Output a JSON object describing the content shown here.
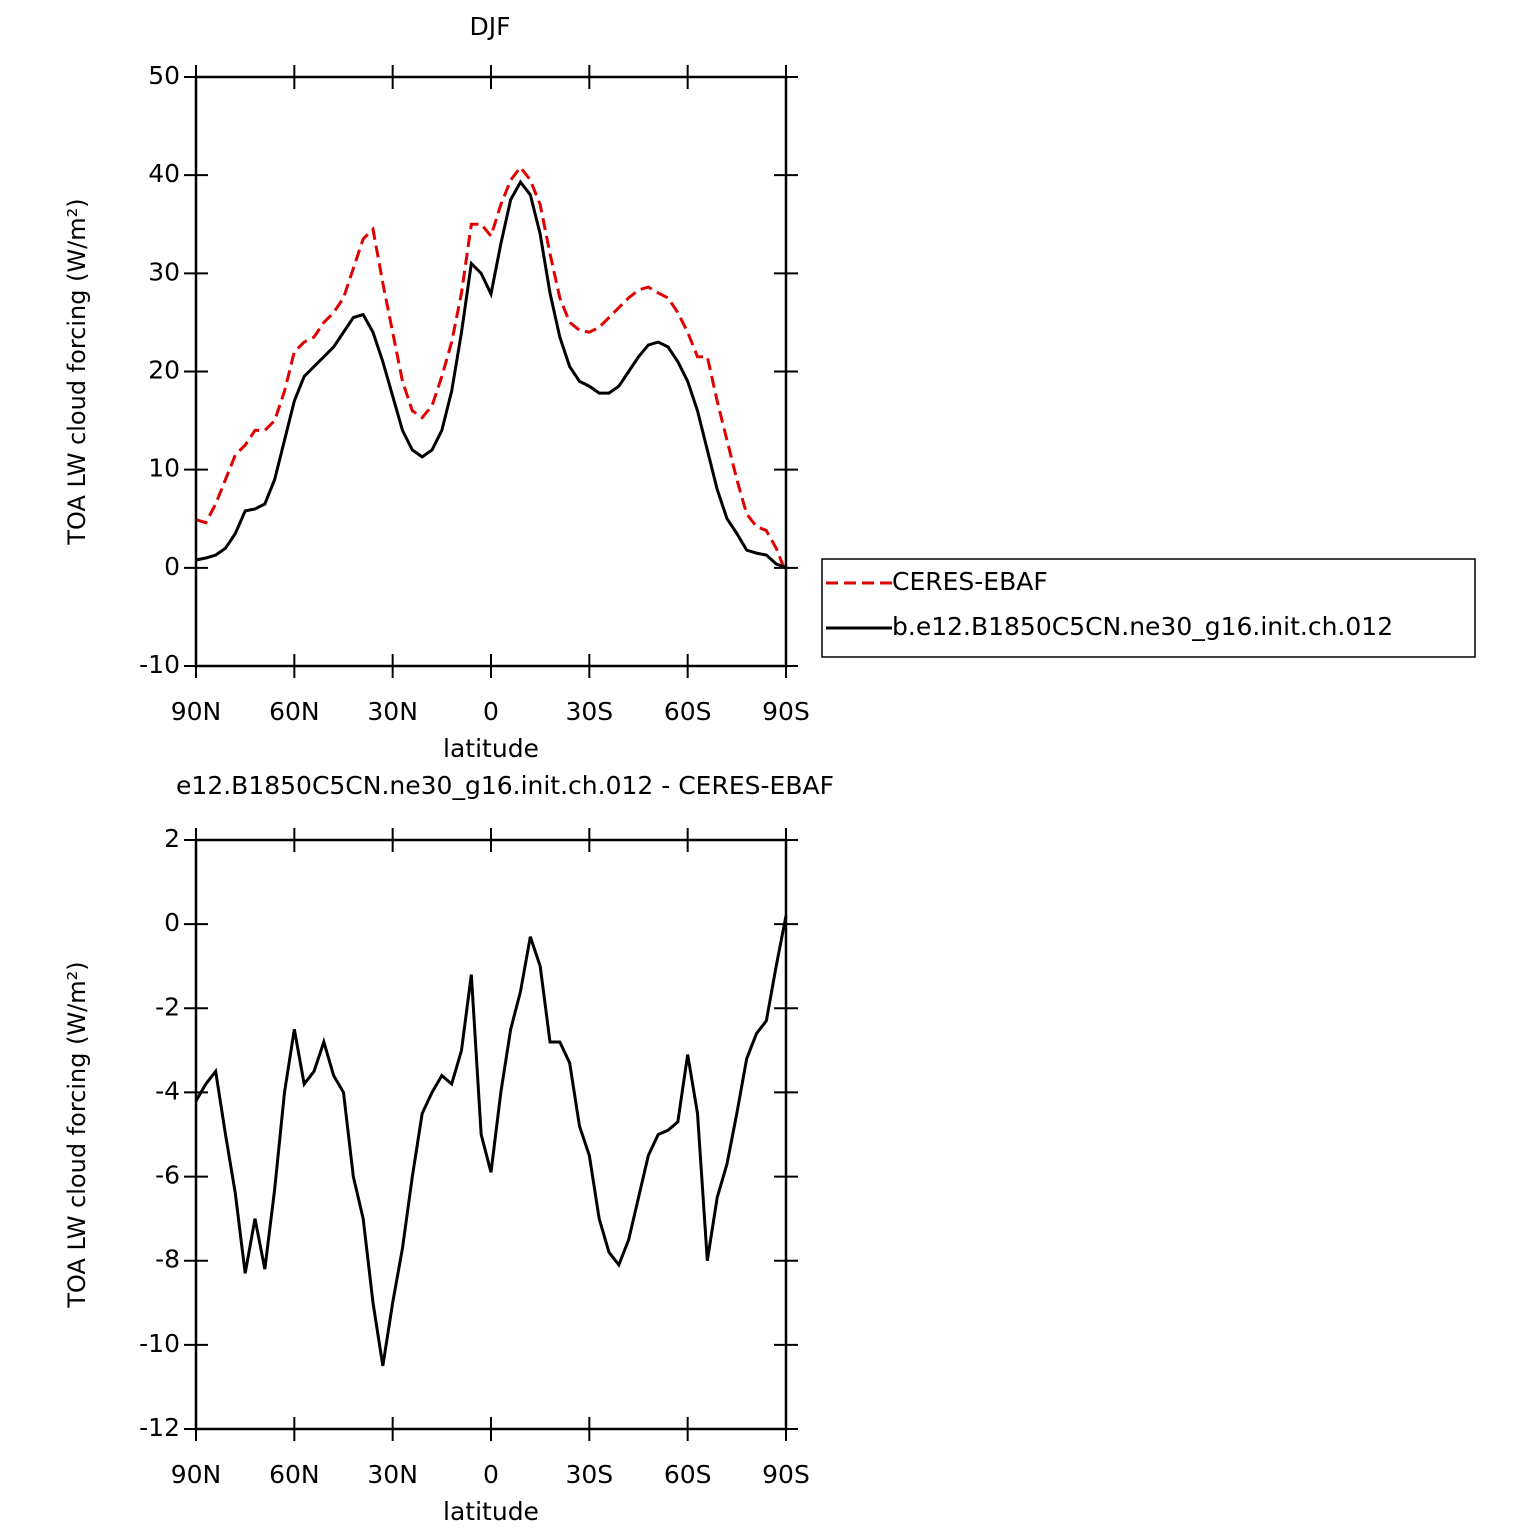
{
  "chart_data": [
    {
      "type": "line",
      "title": "DJF",
      "xlabel": "latitude",
      "ylabel": "TOA LW cloud forcing (W/m²)",
      "x": [
        90,
        87,
        84,
        81,
        78,
        75,
        72,
        69,
        66,
        63,
        60,
        57,
        54,
        51,
        48,
        45,
        42,
        39,
        36,
        33,
        30,
        27,
        24,
        21,
        18,
        15,
        12,
        9,
        6,
        3,
        0,
        -3,
        -6,
        -9,
        -12,
        -15,
        -18,
        -21,
        -24,
        -27,
        -30,
        -33,
        -36,
        -39,
        -42,
        -45,
        -48,
        -51,
        -54,
        -57,
        -60,
        -63,
        -66,
        -69,
        -72,
        -75,
        -78,
        -81,
        -84,
        -87,
        -90
      ],
      "xlim": [
        90,
        -90
      ],
      "xticks": [
        {
          "value": 90,
          "label": "90N"
        },
        {
          "value": 60,
          "label": "60N"
        },
        {
          "value": 30,
          "label": "30N"
        },
        0,
        {
          "value": -30,
          "label": "30S"
        },
        {
          "value": -60,
          "label": "60S"
        },
        {
          "value": -90,
          "label": "90S"
        }
      ],
      "ylim": [
        -10,
        50
      ],
      "yticks": [
        -10,
        0,
        10,
        20,
        30,
        40,
        50
      ],
      "legend": "right",
      "series": [
        {
          "name": "CERES-EBAF",
          "color": "#e00000",
          "dash": "dashed",
          "values": [
            4.9,
            4.6,
            6.5,
            9,
            11.5,
            12.5,
            14,
            14,
            15,
            18,
            22,
            23,
            23.5,
            25,
            26,
            27.5,
            30.5,
            33.5,
            34.5,
            29,
            24,
            19,
            16,
            15.3,
            16.5,
            19.5,
            23,
            28,
            35,
            35,
            33.8,
            37,
            39.5,
            40.8,
            39.5,
            37,
            32,
            27.5,
            25,
            24.2,
            24,
            24.5,
            25.5,
            26.5,
            27.5,
            28.3,
            28.6,
            28,
            27.5,
            26,
            24,
            21.5,
            21.5,
            17,
            13,
            9,
            5.5,
            4.2,
            3.8,
            2,
            -0.5
          ]
        },
        {
          "name": "b.e12.B1850C5CN.ne30_g16.init.ch.012",
          "color": "#000000",
          "dash": "solid",
          "values": [
            0.8,
            1.0,
            1.3,
            2,
            3.5,
            5.8,
            6,
            6.5,
            9,
            13,
            17,
            19.5,
            20.5,
            21.5,
            22.5,
            24,
            25.5,
            25.8,
            24,
            21,
            17.5,
            14,
            12,
            11.3,
            12,
            14,
            18,
            24,
            31,
            30,
            27.9,
            33,
            37.5,
            39.3,
            38,
            34,
            28,
            23.5,
            20.5,
            19,
            18.5,
            17.8,
            17.8,
            18.5,
            20,
            21.5,
            22.7,
            23,
            22.5,
            21,
            19,
            16,
            12,
            8,
            5,
            3.5,
            1.8,
            1.5,
            1.3,
            0.4,
            0
          ]
        }
      ]
    },
    {
      "type": "line",
      "title": "e12.B1850C5CN.ne30_g16.init.ch.012 - CERES-EBAF",
      "xlabel": "latitude",
      "ylabel": "TOA LW cloud forcing (W/m²)",
      "x": [
        90,
        87,
        84,
        81,
        78,
        75,
        72,
        69,
        66,
        63,
        60,
        57,
        54,
        51,
        48,
        45,
        42,
        39,
        36,
        33,
        30,
        27,
        24,
        21,
        18,
        15,
        12,
        9,
        6,
        3,
        0,
        -3,
        -6,
        -9,
        -12,
        -15,
        -18,
        -21,
        -24,
        -27,
        -30,
        -33,
        -36,
        -39,
        -42,
        -45,
        -48,
        -51,
        -54,
        -57,
        -60,
        -63,
        -66,
        -69,
        -72,
        -75,
        -78,
        -81,
        -84,
        -87,
        -90
      ],
      "xlim": [
        90,
        -90
      ],
      "xticks": [
        {
          "value": 90,
          "label": "90N"
        },
        {
          "value": 60,
          "label": "60N"
        },
        {
          "value": 30,
          "label": "30N"
        },
        0,
        {
          "value": -30,
          "label": "30S"
        },
        {
          "value": -60,
          "label": "60S"
        },
        {
          "value": -90,
          "label": "90S"
        }
      ],
      "ylim": [
        -12,
        2
      ],
      "yticks": [
        -12,
        -10,
        -8,
        -6,
        -4,
        -2,
        0,
        2
      ],
      "series": [
        {
          "color": "#000000",
          "dash": "solid",
          "values": [
            -4.2,
            -3.8,
            -3.5,
            -5,
            -6.4,
            -8.3,
            -7,
            -8.2,
            -6.3,
            -4,
            -2.5,
            -3.8,
            -3.5,
            -2.8,
            -3.6,
            -4,
            -6,
            -7,
            -9,
            -10.5,
            -9,
            -7.7,
            -6,
            -4.5,
            -4,
            -3.6,
            -3.8,
            -3,
            -1.2,
            -5,
            -5.9,
            -4,
            -2.5,
            -1.6,
            -0.3,
            -1,
            -2.8,
            -2.8,
            -3.3,
            -4.8,
            -5.5,
            -7,
            -7.8,
            -8.1,
            -7.5,
            -6.5,
            -5.5,
            -5,
            -4.9,
            -4.7,
            -3.1,
            -4.5,
            -8,
            -6.5,
            -5.7,
            -4.5,
            -3.2,
            -2.6,
            -2.3,
            -1,
            0.2
          ]
        }
      ]
    }
  ]
}
